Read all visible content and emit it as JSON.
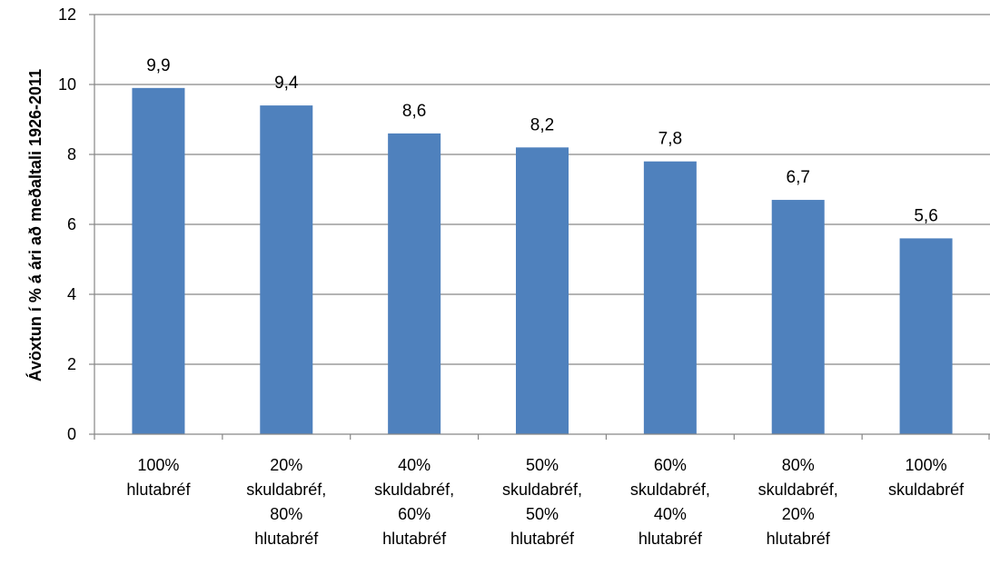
{
  "chart_data": {
    "type": "bar",
    "ylabel": "Ávöxtun í % á ári að meðaltali 1926-2011",
    "xlabel": "",
    "ylim": [
      0,
      12
    ],
    "yticks": [
      "0",
      "2",
      "4",
      "6",
      "8",
      "10",
      "12"
    ],
    "grid": true,
    "categories": [
      [
        "100%",
        "hlutabréf"
      ],
      [
        "20%",
        "skuldabréf,",
        "80%",
        "hlutabréf"
      ],
      [
        "40%",
        "skuldabréf,",
        "60%",
        "hlutabréf"
      ],
      [
        "50%",
        "skuldabréf,",
        "50%",
        "hlutabréf"
      ],
      [
        "60%",
        "skuldabréf,",
        "40%",
        "hlutabréf"
      ],
      [
        "80%",
        "skuldabréf,",
        "20%",
        "hlutabréf"
      ],
      [
        "100%",
        "skuldabréf"
      ]
    ],
    "values": [
      9.9,
      9.4,
      8.6,
      8.2,
      7.8,
      6.7,
      5.6
    ],
    "data_labels": [
      "9,9",
      "9,4",
      "8,6",
      "8,2",
      "7,8",
      "6,7",
      "5,6"
    ],
    "bar_color": "#4F81BD",
    "grid_color": "#868686"
  }
}
